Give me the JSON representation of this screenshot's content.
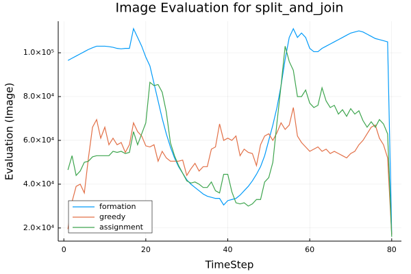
{
  "chart_data": {
    "type": "line",
    "title": "Image Evaluation for split_and_join",
    "x_label": "TimeStep",
    "y_label": "Evaluation (Image)",
    "x": [
      1,
      2,
      3,
      4,
      5,
      6,
      7,
      8,
      9,
      10,
      11,
      12,
      13,
      14,
      15,
      16,
      17,
      18,
      19,
      20,
      21,
      22,
      23,
      24,
      25,
      26,
      27,
      28,
      29,
      30,
      31,
      32,
      33,
      34,
      35,
      36,
      37,
      38,
      39,
      40,
      41,
      42,
      43,
      44,
      45,
      46,
      47,
      48,
      49,
      50,
      51,
      52,
      53,
      54,
      55,
      56,
      57,
      58,
      59,
      60,
      61,
      62,
      63,
      64,
      65,
      66,
      67,
      68,
      69,
      70,
      71,
      72,
      73,
      74,
      75,
      76,
      77,
      78,
      79,
      80
    ],
    "series": [
      {
        "name": "formation",
        "color": "#009af9",
        "values": [
          96500,
          97500,
          98500,
          99500,
          100500,
          101500,
          102300,
          103000,
          103000,
          103000,
          102800,
          102500,
          102000,
          101800,
          102000,
          102000,
          111000,
          107000,
          103000,
          98000,
          94000,
          86000,
          78000,
          70000,
          63000,
          57000,
          52000,
          48000,
          45000,
          42000,
          40000,
          38500,
          37000,
          35500,
          34500,
          34000,
          33500,
          33500,
          30500,
          32500,
          33000,
          33500,
          35000,
          37000,
          39000,
          41500,
          44500,
          48000,
          53000,
          60000,
          67000,
          75000,
          85000,
          97000,
          107000,
          111000,
          107000,
          109000,
          107000,
          102000,
          100500,
          100500,
          102000,
          103000,
          104000,
          105000,
          106000,
          107000,
          108000,
          109000,
          109500,
          110000,
          109500,
          108500,
          107500,
          106500,
          106000,
          105500,
          105000,
          17000
        ]
      },
      {
        "name": "greedy",
        "color": "#e26f46",
        "values": [
          19500,
          32000,
          39000,
          40000,
          36000,
          52000,
          66000,
          69500,
          61000,
          66000,
          58000,
          61000,
          58000,
          59000,
          54500,
          58000,
          68000,
          64000,
          62000,
          57500,
          57000,
          58000,
          50500,
          55000,
          52000,
          50500,
          50500,
          50500,
          51000,
          44000,
          47000,
          49500,
          46000,
          48000,
          48000,
          56000,
          57000,
          67500,
          60000,
          61000,
          60000,
          62000,
          53000,
          56000,
          54500,
          54000,
          48500,
          58000,
          62000,
          63000,
          60000,
          63500,
          68000,
          65000,
          67000,
          75000,
          62000,
          59000,
          57000,
          55000,
          56000,
          57000,
          55000,
          56000,
          54000,
          55000,
          54000,
          53000,
          52000,
          54000,
          55000,
          58000,
          60000,
          63000,
          66000,
          67000,
          61000,
          58000,
          52000,
          17000
        ]
      },
      {
        "name": "assignment",
        "color": "#3da44d",
        "values": [
          46500,
          53000,
          44000,
          46000,
          50000,
          50500,
          52500,
          53000,
          53000,
          53000,
          53000,
          55000,
          54500,
          55000,
          54000,
          54500,
          64000,
          58000,
          63000,
          68000,
          86500,
          85000,
          85500,
          82000,
          73000,
          59000,
          53000,
          48500,
          45000,
          41500,
          40500,
          41000,
          40000,
          38500,
          38500,
          41000,
          37000,
          36000,
          44500,
          44500,
          36500,
          31500,
          31000,
          31500,
          30000,
          31000,
          33000,
          33000,
          41000,
          43000,
          50000,
          68000,
          85000,
          103000,
          96000,
          92000,
          80000,
          80000,
          83000,
          77000,
          75000,
          76000,
          84000,
          78000,
          75000,
          76000,
          72000,
          74000,
          71000,
          74500,
          72000,
          73500,
          69000,
          66000,
          68500,
          66000,
          69500,
          67500,
          63000,
          16000
        ]
      }
    ],
    "xlim": [
      -1.37,
      82.37
    ],
    "xticks": [
      0,
      20,
      40,
      60,
      80
    ],
    "ylim": [
      14000,
      114400
    ],
    "yticks": [
      {
        "value": 20000,
        "label": "2.0×10⁴"
      },
      {
        "value": 40000,
        "label": "4.0×10⁴"
      },
      {
        "value": 60000,
        "label": "6.0×10⁴"
      },
      {
        "value": 80000,
        "label": "8.0×10⁴"
      },
      {
        "value": 100000,
        "label": "1.0×10⁵"
      }
    ],
    "grid": true,
    "legend": "bottom-left"
  }
}
